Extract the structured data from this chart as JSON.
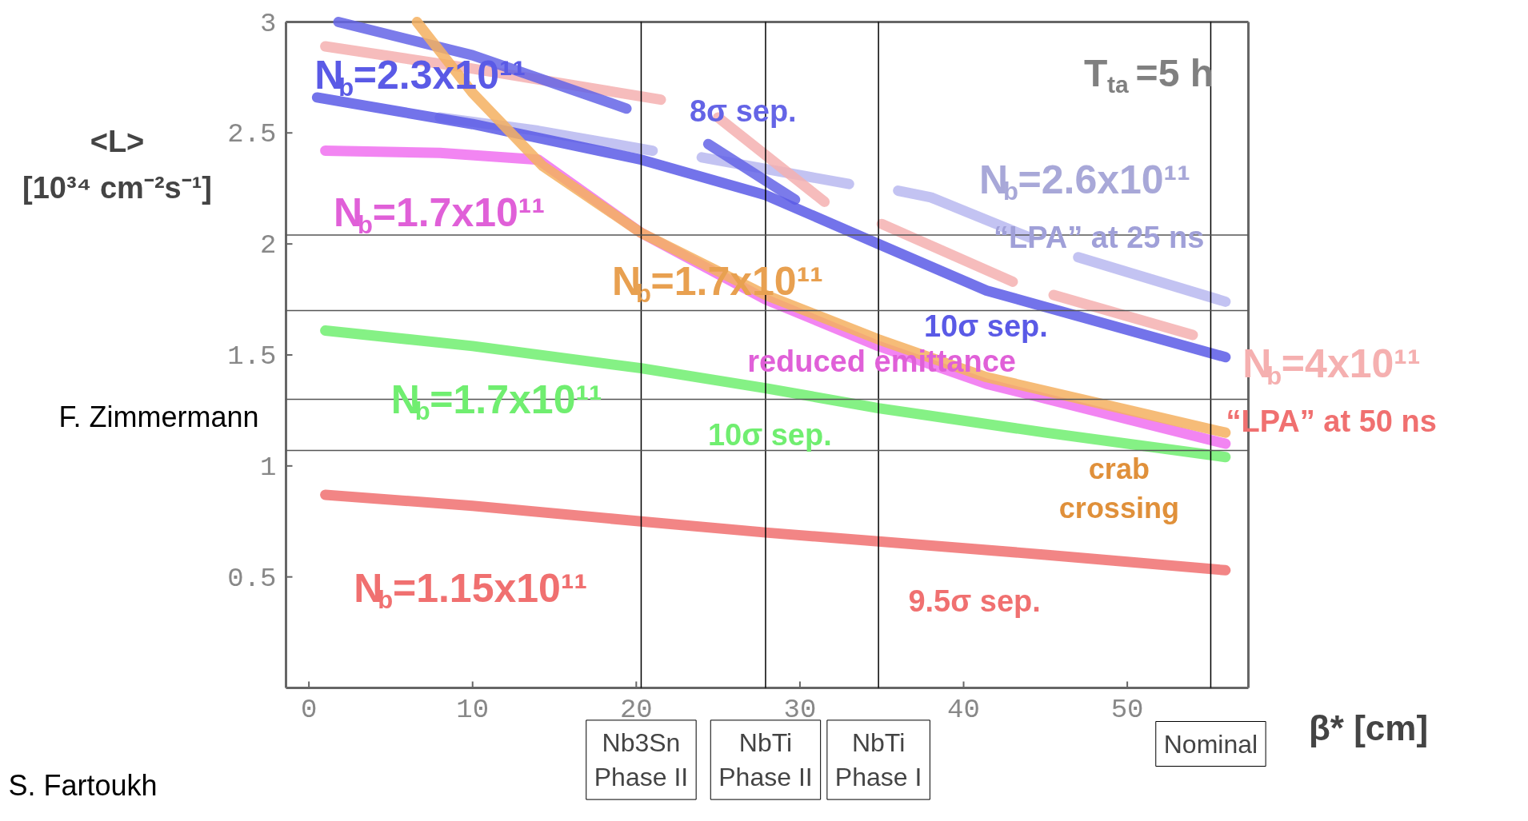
{
  "chart_data": {
    "type": "line",
    "xlabel": "β* [cm]",
    "ylabel": "<L>\n[10³⁴ cm⁻²s⁻¹]",
    "xlim": [
      -1.4,
      57.4
    ],
    "ylim": [
      0,
      3
    ],
    "xticks": [
      0,
      10,
      20,
      30,
      40,
      50
    ],
    "yticks": [
      0.5,
      1,
      1.5,
      2,
      2.5,
      3
    ],
    "grid": false,
    "legend": false,
    "marker": "none",
    "line_style": "solid",
    "series": [
      {
        "name": "N$_{b}$=1.15x10¹¹",
        "color": "#f07070",
        "x": [
          1,
          10,
          20.3,
          27.9,
          34.8,
          45,
          56
        ],
        "values": [
          0.87,
          0.82,
          0.75,
          0.7,
          0.66,
          0.6,
          0.53
        ]
      },
      {
        "name": "N$_{b}$=1.7x10¹¹",
        "color": "#70ee70",
        "x": [
          1,
          10,
          20.3,
          27.9,
          34.8,
          45,
          56
        ],
        "values": [
          1.61,
          1.54,
          1.44,
          1.35,
          1.26,
          1.15,
          1.04
        ]
      },
      {
        "name": "N$_{b}$=2.6x10¹¹",
        "color": "#b8b8f0",
        "x": [
          8,
          14,
          21,
          22,
          24,
          33,
          34,
          36,
          38,
          44,
          45,
          47,
          56
        ],
        "values": [
          2.57,
          2.51,
          2.42,
          null,
          2.39,
          2.27,
          null,
          2.24,
          2.21,
          2.03,
          null,
          1.94,
          1.74
        ]
      },
      {
        "name": "N$_{b}$=4x10¹¹",
        "color": "#f5b0b0",
        "x": [
          1,
          10,
          21.5,
          22.5,
          25,
          31.5,
          32.5,
          35,
          43,
          44.5,
          45.5,
          54
        ],
        "values": [
          2.89,
          2.79,
          2.65,
          null,
          2.57,
          2.19,
          null,
          2.09,
          1.83,
          null,
          1.77,
          1.59
        ]
      },
      {
        "color": "#6464e6",
        "x": [
          1.8,
          10,
          19.4,
          20,
          24.4,
          29.7
        ],
        "values": [
          3.0,
          2.85,
          2.61,
          null,
          2.45,
          2.2
        ]
      },
      {
        "name": "N$_{b}$=2.3x10¹¹",
        "color": "#5a5ae6",
        "x": [
          0.5,
          10,
          20.3,
          27.9,
          34.8,
          41.4,
          56
        ],
        "values": [
          2.66,
          2.54,
          2.38,
          2.22,
          2.0,
          1.79,
          1.49
        ]
      },
      {
        "name": "N$_{b}$=1.7x10¹¹",
        "color": "#f070f0",
        "x": [
          1,
          8,
          14,
          20.3,
          27.9,
          34.8,
          41.4,
          56
        ],
        "values": [
          2.42,
          2.41,
          2.38,
          2.05,
          1.75,
          1.54,
          1.37,
          1.1
        ]
      },
      {
        "name": "N$_{b}$=1.7x10¹¹",
        "color": "#f5b060",
        "x": [
          6.6,
          10,
          14.3,
          20.3,
          27.9,
          34.8,
          41.4,
          56
        ],
        "values": [
          3.0,
          2.68,
          2.35,
          2.05,
          1.77,
          1.57,
          1.4,
          1.15
        ]
      }
    ],
    "ref_lines": [
      {
        "axis": "x",
        "value": 20.3,
        "label": "Nb3Sn\nPhase II",
        "color": "#000000"
      },
      {
        "axis": "x",
        "value": 27.9,
        "label": "NbTi\nPhase II",
        "color": "#000000"
      },
      {
        "axis": "x",
        "value": 34.8,
        "label": "NbTi\nPhase I",
        "color": "#000000"
      },
      {
        "axis": "x",
        "value": 55.1,
        "label": "Nominal",
        "color": "#000000"
      },
      {
        "axis": "y",
        "value": 2.04,
        "color": "#555555"
      },
      {
        "axis": "y",
        "value": 1.7,
        "color": "#555555"
      },
      {
        "axis": "y",
        "value": 1.3,
        "color": "#555555"
      },
      {
        "axis": "y",
        "value": 1.07,
        "color": "#555555"
      }
    ],
    "annotations": [
      "T$_{ta}$=5 h",
      "8σ sep.",
      "10σ sep.",
      "10σ sep.",
      "9.5σ sep.",
      "reduced emittance",
      "“LPA” at 25 ns",
      "“LPA” at 50 ns",
      "crab\ncrossing",
      "F. Zimmermann",
      "S. Fartoukh"
    ]
  }
}
